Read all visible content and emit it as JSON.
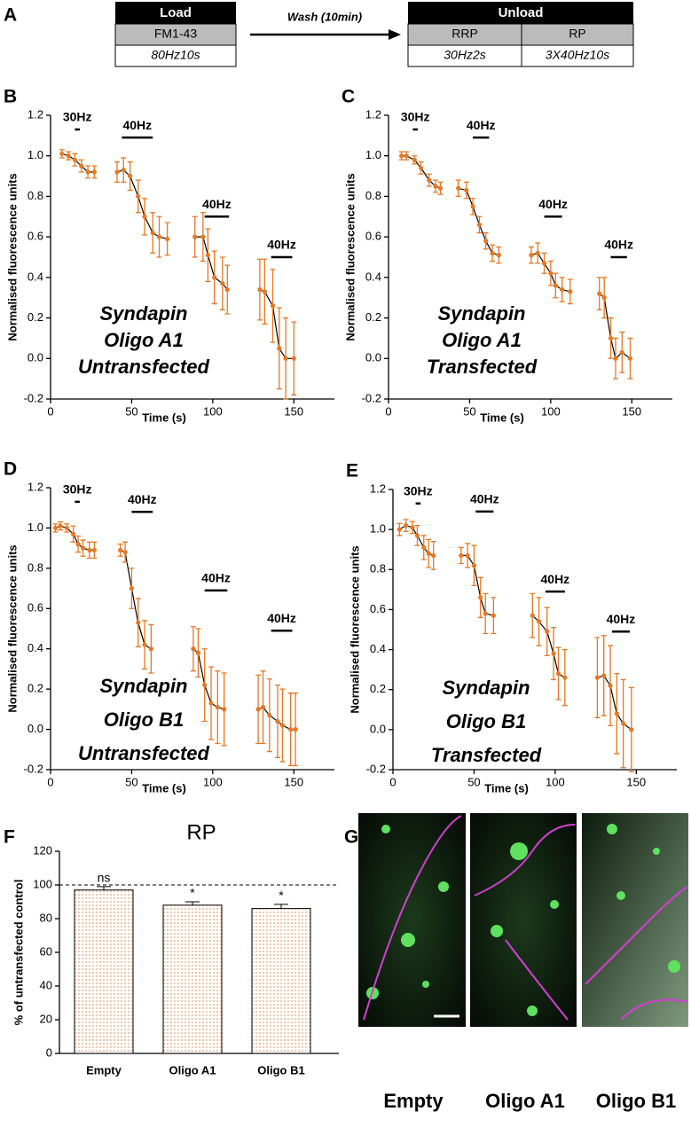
{
  "protocol": {
    "label": "A",
    "load": {
      "header": "Load",
      "dye": "FM1-43",
      "stim": "80Hz10s"
    },
    "wash": "Wash (10min)",
    "unload": {
      "header": "Unload",
      "pools": [
        "RRP",
        "RP"
      ],
      "stims": [
        "30Hz2s",
        "3X40Hz10s"
      ]
    }
  },
  "images": {
    "label": "G",
    "captions": [
      "Empty",
      "Oligo A1",
      "Oligo B1"
    ]
  },
  "chart_data": [
    {
      "type": "line",
      "panel": "B",
      "annotation": [
        "Syndapin",
        "Oligo A1",
        "Untransfected"
      ],
      "xlabel": "Time (s)",
      "ylabel": "Normalised fluorescence units",
      "xlim": [
        0,
        175
      ],
      "xticks": [
        0,
        50,
        100,
        150
      ],
      "ylim": [
        -0.2,
        1.2
      ],
      "yticks": [
        -0.2,
        {
          "value": 0,
          "label": "0.0"
        },
        0.2,
        0.4,
        0.6,
        0.8,
        {
          "value": 1,
          "label": "1.0"
        },
        1.2
      ],
      "stimuli": [
        {
          "label": "30Hz",
          "start": 15,
          "end": 18,
          "y": 1.13
        },
        {
          "label": "40Hz",
          "start": 44,
          "end": 63,
          "y": 1.09
        },
        {
          "label": "40Hz",
          "start": 95,
          "end": 110,
          "y": 0.7
        },
        {
          "label": "40Hz",
          "start": 136,
          "end": 149,
          "y": 0.5
        }
      ],
      "series": [
        {
          "color": "#e87722",
          "line_color": "#000000",
          "x": [
            7,
            11,
            15,
            19,
            23,
            27,
            null,
            41,
            45,
            49,
            54,
            58,
            63,
            67,
            72,
            null,
            89,
            94,
            97,
            101,
            106,
            109,
            null,
            129,
            132,
            137,
            141,
            145,
            150
          ],
          "values": [
            1.01,
            1.0,
            0.98,
            0.95,
            0.92,
            0.92,
            null,
            0.92,
            0.93,
            0.9,
            0.8,
            0.7,
            0.62,
            0.6,
            0.59,
            null,
            0.6,
            0.6,
            0.51,
            0.4,
            0.37,
            0.34,
            null,
            0.34,
            0.33,
            0.26,
            0.05,
            0.0,
            0.0
          ],
          "errors": [
            0.02,
            0.02,
            0.03,
            0.03,
            0.03,
            0.03,
            null,
            0.05,
            0.06,
            0.07,
            0.08,
            0.09,
            0.1,
            0.1,
            0.08,
            null,
            0.1,
            0.12,
            0.13,
            0.13,
            0.13,
            0.12,
            null,
            0.15,
            0.16,
            0.18,
            0.2,
            0.2,
            0.18
          ]
        }
      ]
    },
    {
      "type": "line",
      "panel": "C",
      "annotation": [
        "Syndapin",
        "Oligo A1",
        "Transfected"
      ],
      "xlabel": "Time (s)",
      "ylabel": "Normalised fluorescence units",
      "xlim": [
        0,
        175
      ],
      "xticks": [
        0,
        50,
        100,
        150
      ],
      "ylim": [
        -0.2,
        1.2
      ],
      "yticks": [
        -0.2,
        {
          "value": 0,
          "label": "0.0"
        },
        0.2,
        0.4,
        0.6,
        0.8,
        {
          "value": 1,
          "label": "1.0"
        },
        1.2
      ],
      "stimuli": [
        {
          "label": "30Hz",
          "start": 15,
          "end": 18,
          "y": 1.13
        },
        {
          "label": "40Hz",
          "start": 52,
          "end": 62,
          "y": 1.09
        },
        {
          "label": "40Hz",
          "start": 96,
          "end": 107,
          "y": 0.7
        },
        {
          "label": "40Hz",
          "start": 137,
          "end": 147,
          "y": 0.5
        }
      ],
      "series": [
        {
          "color": "#e87722",
          "line_color": "#000000",
          "x": [
            8,
            11,
            16,
            20,
            25,
            29,
            32,
            null,
            43,
            48,
            52,
            56,
            60,
            64,
            68,
            null,
            88,
            92,
            96,
            100,
            103,
            107,
            112,
            null,
            130,
            133,
            137,
            140,
            144,
            149
          ],
          "values": [
            1.0,
            1.0,
            0.98,
            0.94,
            0.88,
            0.85,
            0.84,
            null,
            0.84,
            0.83,
            0.75,
            0.66,
            0.58,
            0.52,
            0.51,
            null,
            0.51,
            0.52,
            0.47,
            0.42,
            0.36,
            0.34,
            0.33,
            null,
            0.32,
            0.3,
            0.1,
            0.0,
            0.03,
            0.0
          ],
          "errors": [
            0.02,
            0.02,
            0.02,
            0.03,
            0.03,
            0.03,
            0.03,
            null,
            0.04,
            0.04,
            0.04,
            0.04,
            0.04,
            0.04,
            0.04,
            null,
            0.04,
            0.05,
            0.05,
            0.06,
            0.06,
            0.06,
            0.06,
            null,
            0.08,
            0.1,
            0.1,
            0.1,
            0.1,
            0.1
          ]
        }
      ]
    },
    {
      "type": "line",
      "panel": "D",
      "annotation": [
        "Syndapin",
        "Oligo B1",
        "Untransfected"
      ],
      "xlabel": "Time (s)",
      "ylabel": "Normalised fluorescence units",
      "xlim": [
        0,
        175
      ],
      "xticks": [
        0,
        50,
        100,
        150
      ],
      "ylim": [
        -0.2,
        1.2
      ],
      "yticks": [
        -0.2,
        {
          "value": 0,
          "label": "0.0"
        },
        0.2,
        0.4,
        0.6,
        0.8,
        {
          "value": 1,
          "label": "1.0"
        },
        1.2
      ],
      "stimuli": [
        {
          "label": "30Hz",
          "start": 15,
          "end": 18,
          "y": 1.13
        },
        {
          "label": "40Hz",
          "start": 50,
          "end": 63,
          "y": 1.08
        },
        {
          "label": "40Hz",
          "start": 95,
          "end": 109,
          "y": 0.69
        },
        {
          "label": "40Hz",
          "start": 136,
          "end": 149,
          "y": 0.49
        }
      ],
      "series": [
        {
          "color": "#e87722",
          "line_color": "#000000",
          "x": [
            3,
            6,
            10,
            14,
            17,
            20,
            24,
            27,
            null,
            43,
            46,
            50,
            54,
            58,
            62,
            null,
            88,
            91,
            95,
            99,
            103,
            107,
            null,
            128,
            131,
            135,
            140,
            143,
            148,
            151
          ],
          "values": [
            1.0,
            1.01,
            1.0,
            0.97,
            0.92,
            0.9,
            0.89,
            0.89,
            null,
            0.89,
            0.88,
            0.7,
            0.53,
            0.42,
            0.4,
            null,
            0.4,
            0.38,
            0.22,
            0.13,
            0.11,
            0.1,
            null,
            0.1,
            0.11,
            0.07,
            0.04,
            0.02,
            0.0,
            0.0
          ],
          "errors": [
            0.02,
            0.02,
            0.02,
            0.04,
            0.04,
            0.04,
            0.04,
            0.04,
            null,
            0.03,
            0.05,
            0.1,
            0.12,
            0.12,
            0.12,
            null,
            0.11,
            0.12,
            0.18,
            0.18,
            0.18,
            0.18,
            null,
            0.17,
            0.18,
            0.18,
            0.18,
            0.18,
            0.18,
            0.18
          ]
        }
      ]
    },
    {
      "type": "line",
      "panel": "E",
      "annotation": [
        "Syndapin",
        "Oligo B1",
        "Transfected"
      ],
      "xlabel": "Time (s)",
      "ylabel": "Normalised fluorescence units",
      "xlim": [
        0,
        175
      ],
      "xticks": [
        0,
        50,
        100,
        150
      ],
      "ylim": [
        -0.2,
        1.2
      ],
      "yticks": [
        -0.2,
        {
          "value": 0,
          "label": "0.0"
        },
        0.2,
        0.4,
        0.6,
        0.8,
        {
          "value": 1,
          "label": "1.0"
        },
        1.2
      ],
      "stimuli": [
        {
          "label": "30Hz",
          "start": 14,
          "end": 17,
          "y": 1.13
        },
        {
          "label": "40Hz",
          "start": 51,
          "end": 62,
          "y": 1.09
        },
        {
          "label": "40Hz",
          "start": 94,
          "end": 106,
          "y": 0.69
        },
        {
          "label": "40Hz",
          "start": 135,
          "end": 146,
          "y": 0.49
        }
      ],
      "series": [
        {
          "color": "#e87722",
          "line_color": "#000000",
          "x": [
            4,
            8,
            12,
            15,
            19,
            22,
            25,
            null,
            42,
            46,
            50,
            54,
            57,
            62,
            null,
            86,
            90,
            95,
            99,
            102,
            106,
            null,
            126,
            130,
            134,
            138,
            142,
            147
          ],
          "values": [
            1.0,
            1.02,
            1.01,
            0.97,
            0.91,
            0.88,
            0.87,
            null,
            0.87,
            0.87,
            0.82,
            0.66,
            0.58,
            0.57,
            null,
            0.57,
            0.54,
            0.49,
            0.38,
            0.28,
            0.26,
            null,
            0.26,
            0.27,
            0.22,
            0.08,
            0.03,
            0.0
          ],
          "errors": [
            0.03,
            0.03,
            0.03,
            0.05,
            0.06,
            0.07,
            0.07,
            null,
            0.04,
            0.06,
            0.1,
            0.1,
            0.1,
            0.09,
            null,
            0.11,
            0.12,
            0.12,
            0.13,
            0.13,
            0.14,
            null,
            0.2,
            0.2,
            0.2,
            0.2,
            0.22,
            0.21
          ]
        }
      ]
    },
    {
      "type": "bar",
      "panel": "F",
      "title": "RP",
      "ylabel": "% of untransfected control",
      "categories": [
        "Empty",
        "Oligo A1",
        "Oligo B1"
      ],
      "values": [
        97,
        88,
        86
      ],
      "errors": [
        2,
        2,
        2.5
      ],
      "annotations": [
        "ns",
        "*",
        "*"
      ],
      "color": "#e8a070",
      "reference_line": 100,
      "ylim": [
        0,
        120
      ],
      "yticks": [
        0,
        20,
        40,
        60,
        80,
        100,
        120
      ]
    }
  ]
}
